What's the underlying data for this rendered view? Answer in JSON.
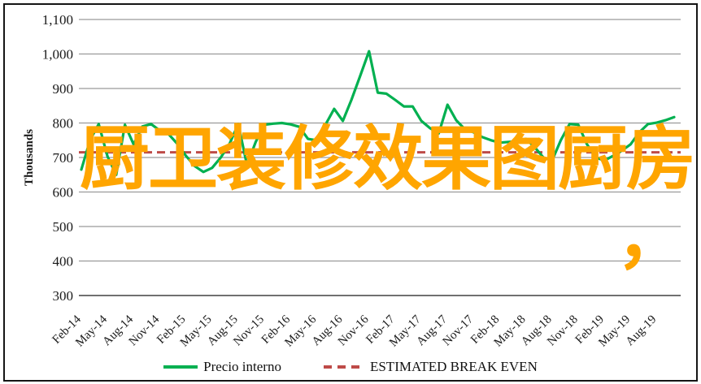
{
  "overlay": {
    "line1": "厨卫装修效果图厨房",
    "line2": "，",
    "color": "#FFA500"
  },
  "legend": {
    "items": [
      {
        "label": "Precio interno",
        "swatch": "green-solid-line"
      },
      {
        "label": "ESTIMATED BREAK EVEN",
        "swatch": "red-dashed-line"
      }
    ]
  },
  "chart_data": {
    "type": "line",
    "title": "",
    "xlabel": "",
    "ylabel": "Thousands",
    "ylim": [
      300,
      1100
    ],
    "ytick_step": 100,
    "ytick_labels": [
      "1,100",
      "1,000",
      "900",
      "800",
      "700",
      "600",
      "500",
      "400",
      "300"
    ],
    "grid": true,
    "legend_position": "bottom",
    "frequency": "monthly",
    "x_range": [
      "Feb-14",
      "Oct-19"
    ],
    "x_tick_labels": [
      "Feb-14",
      "May-14",
      "Aug-14",
      "Nov-14",
      "Feb-15",
      "May-15",
      "Aug-15",
      "Nov-15",
      "Feb-16",
      "May-16",
      "Aug-16",
      "Nov-16",
      "Feb-17",
      "May-17",
      "Aug-17",
      "Nov-17",
      "Feb-18",
      "May-18",
      "Aug-18",
      "Nov-18",
      "Feb-19",
      "May-19",
      "Aug-19"
    ],
    "x_tick_every_n_points": 3,
    "series": [
      {
        "name": "Precio interno",
        "color": "#00B050",
        "style": "solid",
        "values": [
          665,
          750,
          797,
          703,
          650,
          795,
          738,
          790,
          797,
          778,
          768,
          740,
          705,
          675,
          658,
          670,
          700,
          740,
          797,
          678,
          745,
          795,
          798,
          800,
          796,
          789,
          754,
          750,
          795,
          841,
          806,
          868,
          938,
          1008,
          888,
          885,
          867,
          848,
          848,
          806,
          785,
          770,
          853,
          808,
          782,
          773,
          759,
          750,
          743,
          745,
          747,
          754,
          730,
          700,
          691,
          750,
          797,
          795,
          738,
          700,
          691,
          705,
          720,
          738,
          773,
          797,
          801,
          808,
          817
        ]
      },
      {
        "name": "ESTIMATED BREAK EVEN",
        "color": "#BE4B48",
        "style": "dashed",
        "constant_value": 715
      }
    ],
    "axis_colors": {
      "gridline": "#9a9a9a",
      "axis_line": "#707070",
      "tick_text": "#1a1a1a"
    }
  }
}
